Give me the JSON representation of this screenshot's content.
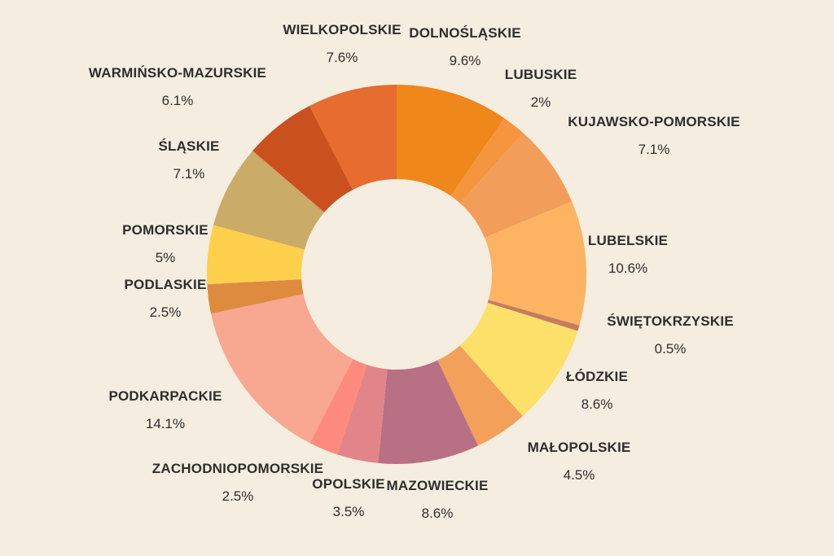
{
  "chart_data": {
    "type": "pie",
    "donut": true,
    "title": "",
    "legend": "none",
    "unit": "%",
    "slices": [
      {
        "label": "DOLNOŚLĄSKIE",
        "value": 9.6,
        "display": "9.6%",
        "color": "#f0871a"
      },
      {
        "label": "LUBUSKIE",
        "value": 2,
        "display": "2%",
        "color": "#f5963e"
      },
      {
        "label": "KUJAWSKO-POMORSKIE",
        "value": 7.1,
        "display": "7.1%",
        "color": "#f29e5a"
      },
      {
        "label": "LUBELSKIE",
        "value": 10.6,
        "display": "10.6%",
        "color": "#fcb462"
      },
      {
        "label": "ŚWIĘTOKRZYSKIE",
        "value": 0.5,
        "display": "0.5%",
        "color": "#c47e5e"
      },
      {
        "label": "ŁÓDZKIE",
        "value": 8.6,
        "display": "8.6%",
        "color": "#fde06a"
      },
      {
        "label": "MAŁOPOLSKIE",
        "value": 4.5,
        "display": "4.5%",
        "color": "#f3a05b"
      },
      {
        "label": "MAZOWIECKIE",
        "value": 8.6,
        "display": "8.6%",
        "color": "#b87084"
      },
      {
        "label": "OPOLSKIE",
        "value": 3.5,
        "display": "3.5%",
        "color": "#e28588"
      },
      {
        "label": "ZACHODNIOPOMORSKIE",
        "value": 2.5,
        "display": "2.5%",
        "color": "#fd8a7c"
      },
      {
        "label": "PODKARPACKIE",
        "value": 14.1,
        "display": "14.1%",
        "color": "#f8a791"
      },
      {
        "label": "PODLASKIE",
        "value": 2.5,
        "display": "2.5%",
        "color": "#de8b40"
      },
      {
        "label": "POMORSKIE",
        "value": 5,
        "display": "5%",
        "color": "#fed04c"
      },
      {
        "label": "ŚLĄSKIE",
        "value": 7.1,
        "display": "7.1%",
        "color": "#caab68"
      },
      {
        "label": "WARMIŃSKO-MAZURSKIE",
        "value": 6.1,
        "display": "6.1%",
        "color": "#ca501e"
      },
      {
        "label": "WIELKOPOLSKIE",
        "value": 7.6,
        "display": "7.6%",
        "color": "#e66c30"
      }
    ]
  }
}
